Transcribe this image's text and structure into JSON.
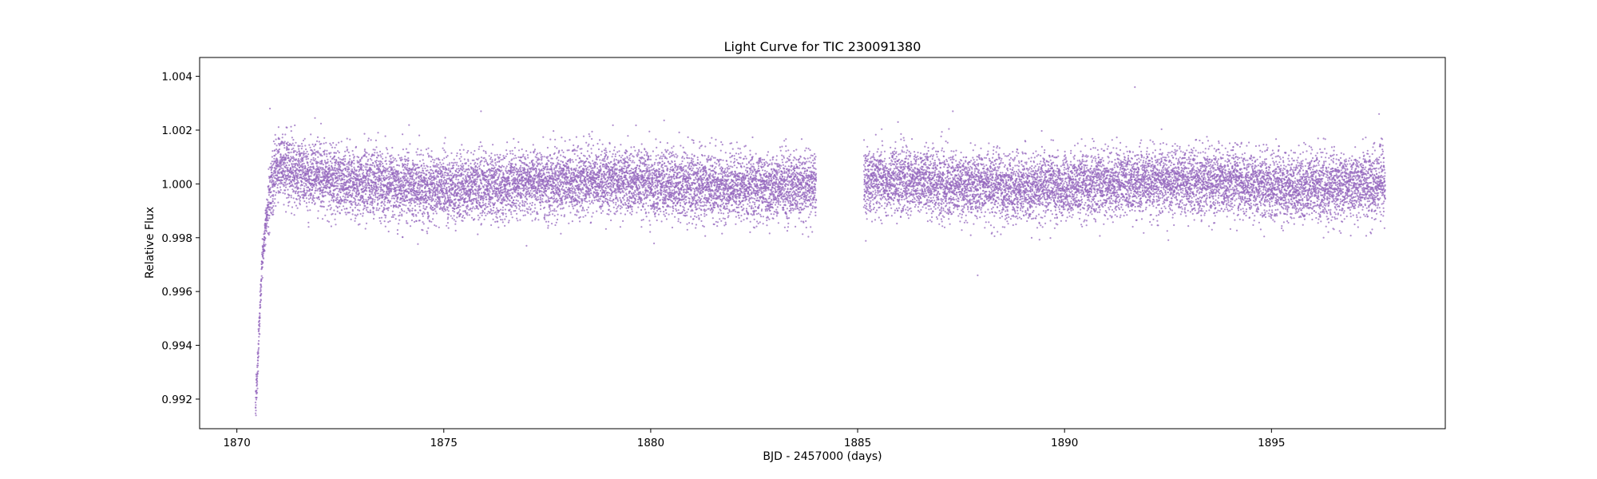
{
  "chart_data": {
    "type": "scatter",
    "title": "Light Curve for TIC 230091380",
    "xlabel": "BJD - 2457000 (days)",
    "ylabel": "Relative Flux",
    "xlim": [
      1869.1,
      1899.2
    ],
    "ylim": [
      0.9909,
      1.0047
    ],
    "xticks": [
      1870,
      1875,
      1880,
      1885,
      1890,
      1895
    ],
    "xtick_labels": [
      "1870",
      "1875",
      "1880",
      "1885",
      "1890",
      "1895"
    ],
    "yticks": [
      0.992,
      0.994,
      0.996,
      0.998,
      1.0,
      1.002,
      1.004
    ],
    "ytick_labels": [
      "0.992",
      "0.994",
      "0.996",
      "0.998",
      "1.000",
      "1.002",
      "1.004"
    ],
    "grid": false,
    "point_color": "#9467bd",
    "series": [
      {
        "segments": [
          {
            "x_start": 1870.45,
            "x_end": 1884.0,
            "cadence_days": 0.00139
          },
          {
            "x_start": 1885.15,
            "x_end": 1897.75,
            "cadence_days": 0.00139
          }
        ],
        "baseline_flux": 1.0,
        "scatter_sigma": 0.0006,
        "ramp_start": [
          {
            "x": 1870.45,
            "y": 0.9917
          },
          {
            "x": 1870.5,
            "y": 0.993
          },
          {
            "x": 1870.55,
            "y": 0.995
          },
          {
            "x": 1870.6,
            "y": 0.9968
          },
          {
            "x": 1870.7,
            "y": 0.9985
          },
          {
            "x": 1870.8,
            "y": 0.9996
          },
          {
            "x": 1871.0,
            "y": 1.0006
          },
          {
            "x": 1871.5,
            "y": 1.0003
          },
          {
            "x": 1872.5,
            "y": 1.0
          }
        ],
        "notable_points": [
          {
            "x": 1870.8,
            "y": 1.0028
          },
          {
            "x": 1875.9,
            "y": 1.0027
          },
          {
            "x": 1877.0,
            "y": 0.9977
          },
          {
            "x": 1887.3,
            "y": 1.0027
          },
          {
            "x": 1887.9,
            "y": 0.9966
          },
          {
            "x": 1891.7,
            "y": 1.0036
          },
          {
            "x": 1897.6,
            "y": 1.0026
          }
        ]
      }
    ]
  }
}
